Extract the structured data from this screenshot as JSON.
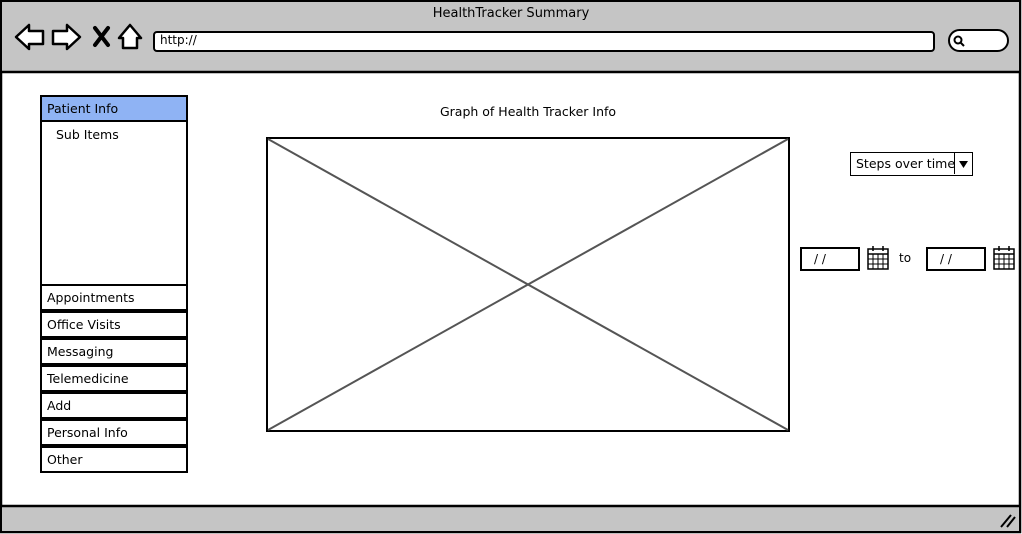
{
  "window": {
    "title": "HealthTracker Summary",
    "url": "http://"
  },
  "icons": {
    "back": "arrow-left-icon",
    "forward": "arrow-right-icon",
    "stop": "close-icon",
    "home": "home-icon",
    "search": "search-icon",
    "calendar": "calendar-icon",
    "dropdown": "caret-down-icon",
    "resize": "resize-grip-icon"
  },
  "sidebar": {
    "active_item": "Patient Info",
    "sub_item": "Sub Items",
    "items": [
      "Appointments",
      "Office Visits",
      "Messaging",
      "Telemedicine",
      "Add",
      "Personal Info",
      "Other"
    ]
  },
  "main": {
    "heading": "Graph of Health Tracker Info"
  },
  "controls": {
    "metric_select": "Steps over time",
    "start_date": "/ /",
    "end_date": "/ /",
    "range_separator": "to"
  },
  "colors": {
    "chrome": "#c5c5c5",
    "active_item": "#8fb3f4",
    "placeholder_stroke": "#555555"
  }
}
